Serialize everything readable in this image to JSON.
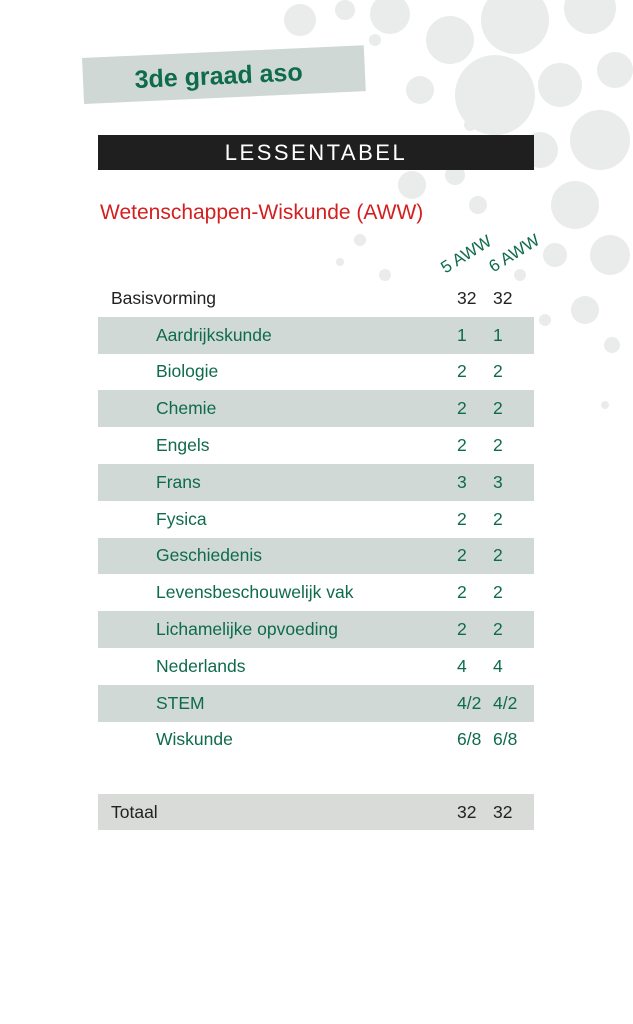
{
  "header": {
    "grade": "3de graad aso",
    "title": "LESSENTABEL",
    "subtitle": "Wetenschappen-Wiskunde (AWW)"
  },
  "table": {
    "columns": [
      "5 AWW",
      "6 AWW"
    ],
    "main_row": {
      "label": "Basisvorming",
      "values": [
        "32",
        "32"
      ]
    },
    "rows": [
      {
        "label": "Aardrijkskunde",
        "values": [
          "1",
          "1"
        ]
      },
      {
        "label": "Biologie",
        "values": [
          "2",
          "2"
        ]
      },
      {
        "label": "Chemie",
        "values": [
          "2",
          "2"
        ]
      },
      {
        "label": "Engels",
        "values": [
          "2",
          "2"
        ]
      },
      {
        "label": "Frans",
        "values": [
          "3",
          "3"
        ]
      },
      {
        "label": "Fysica",
        "values": [
          "2",
          "2"
        ]
      },
      {
        "label": "Geschiedenis",
        "values": [
          "2",
          "2"
        ]
      },
      {
        "label": "Levensbeschouwelijk vak",
        "values": [
          "2",
          "2"
        ]
      },
      {
        "label": "Lichamelijke opvoeding",
        "values": [
          "2",
          "2"
        ]
      },
      {
        "label": "Nederlands",
        "values": [
          "4",
          "4"
        ]
      },
      {
        "label": "STEM",
        "values": [
          "4/2",
          "4/2"
        ]
      },
      {
        "label": "Wiskunde",
        "values": [
          "6/8",
          "6/8"
        ]
      }
    ],
    "total": {
      "label": "Totaal",
      "values": [
        "32",
        "32"
      ]
    }
  },
  "colors": {
    "accent_green": "#0e6b4b",
    "subtitle_red": "#d41f1f",
    "row_shade": "#d0d9d6",
    "title_bar": "#1f1f1f"
  }
}
